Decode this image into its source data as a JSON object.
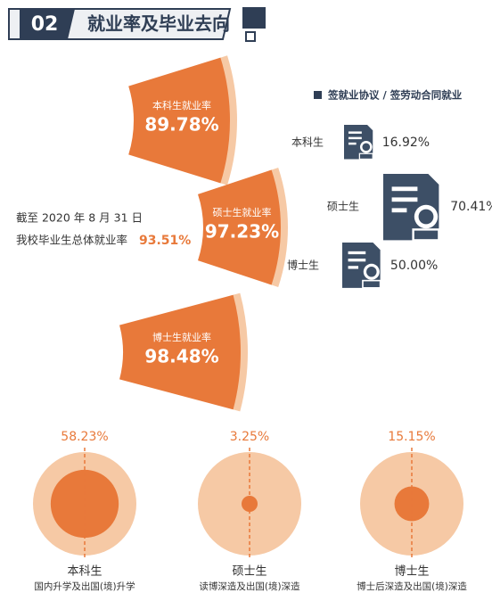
{
  "header": {
    "number": "02",
    "title": "就业率及毕业去向"
  },
  "overall": {
    "line1": "截至 2020 年 8 月 31 日",
    "line2": "我校毕业生总体就业率",
    "rate": "93.51%"
  },
  "fans": [
    {
      "label": "本科生就业率",
      "value": "89.78%"
    },
    {
      "label": "硕士生就业率",
      "value": "97.23%"
    },
    {
      "label": "博士生就业率",
      "value": "98.48%"
    }
  ],
  "contracts": {
    "legend": "签就业协议 / 签劳动合同就业",
    "items": [
      {
        "label": "本科生",
        "value": "16.92%"
      },
      {
        "label": "硕士生",
        "value": "70.41%"
      },
      {
        "label": "博士生",
        "value": "50.00%"
      }
    ]
  },
  "further": [
    {
      "value": 58.23,
      "value_label": "58.23%",
      "label": "本科生",
      "caption": "国内升学及出国(境)升学"
    },
    {
      "value": 3.25,
      "value_label": "3.25%",
      "label": "硕士生",
      "caption": "读博深造及出国(境)深造"
    },
    {
      "value": 15.15,
      "value_label": "15.15%",
      "label": "博士生",
      "caption": "博士后深造及出国(境)深造"
    }
  ]
}
